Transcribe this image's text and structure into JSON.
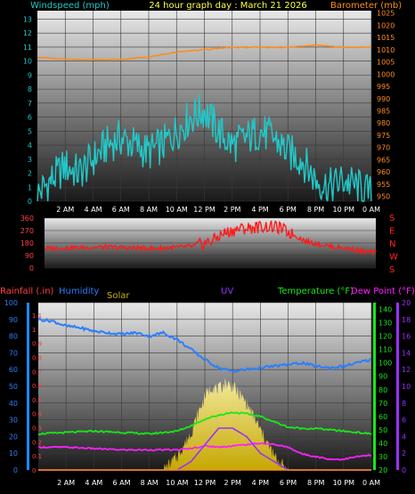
{
  "header": {
    "title": "24 hour graph day : March 21 2026",
    "wind_label": "Windspeed (mph)",
    "baro_label": "Barometer (mb)"
  },
  "legend": {
    "rain": "Rainfall (.in)",
    "humidity": "Humidity",
    "solar": "Solar",
    "uv": "UV",
    "temp": "Temperature (°F)",
    "dew": "Dew Point (°F)"
  },
  "compass": [
    "S",
    "E",
    "N",
    "W",
    "S"
  ],
  "colors": {
    "wind": "#22c8c8",
    "baro": "#ff8c1a",
    "dir": "#ff1a1a",
    "rain_axis": "#1a8cff",
    "humidity": "#2a7fff",
    "solar": "#c8b400",
    "uv": "#9b30ff",
    "temp": "#18e818",
    "dew": "#ff20ff"
  },
  "chart_data": [
    {
      "type": "line",
      "title": "24 hour graph day : March 21 2026",
      "x_ticks": [
        "2 AM",
        "4 AM",
        "6 AM",
        "8 AM",
        "10 AM",
        "12 PM",
        "2 PM",
        "4 PM",
        "6 PM",
        "8 PM",
        "10 PM",
        "0 AM"
      ],
      "wind_ticks": [
        0,
        1,
        2,
        3,
        4,
        5,
        6,
        7,
        8,
        9,
        10,
        11,
        12,
        13
      ],
      "baro_ticks": [
        950,
        955,
        960,
        965,
        970,
        975,
        980,
        985,
        990,
        995,
        1000,
        1005,
        1010,
        1015,
        1020,
        1025
      ],
      "ylim_wind": [
        0,
        13.6
      ],
      "ylim_baro": [
        948,
        1026
      ],
      "series": [
        {
          "name": "Windspeed (mph)",
          "x": [
            0,
            1,
            2,
            3,
            4,
            5,
            6,
            7,
            8,
            9,
            10,
            11,
            12,
            13,
            14,
            15,
            16,
            17,
            18,
            19,
            20,
            21,
            22,
            23,
            24
          ],
          "values": [
            0.5,
            1.5,
            2.5,
            2,
            3,
            4,
            4.5,
            4,
            3.5,
            4,
            5,
            6,
            6.5,
            5,
            4,
            4.5,
            5,
            4.5,
            3.5,
            3,
            1.5,
            1,
            1.5,
            1,
            0.5
          ]
        },
        {
          "name": "Barometer (mb)",
          "x": [
            0,
            2,
            4,
            6,
            8,
            10,
            12,
            14,
            16,
            18,
            20,
            22,
            24
          ],
          "values": [
            1007,
            1006,
            1006,
            1006,
            1007,
            1009,
            1010,
            1011,
            1011,
            1011,
            1012,
            1011,
            1011
          ]
        }
      ]
    },
    {
      "type": "line",
      "dir_ticks": [
        0,
        90,
        180,
        270,
        360
      ],
      "ylim": [
        0,
        360
      ],
      "series": [
        {
          "name": "Wind direction",
          "x": [
            0,
            2,
            4,
            6,
            8,
            10,
            11,
            12,
            13,
            14,
            15,
            16,
            17,
            18,
            19,
            20,
            21,
            22,
            23,
            24
          ],
          "values": [
            140,
            145,
            150,
            145,
            140,
            150,
            160,
            190,
            250,
            280,
            290,
            300,
            290,
            240,
            190,
            170,
            150,
            140,
            120,
            110
          ]
        }
      ]
    },
    {
      "type": "line",
      "rain_ticks": [
        0,
        0.1,
        0.2,
        0.3,
        0.4,
        0.5,
        0.6,
        0.7,
        0.8,
        0.9,
        1,
        1.1
      ],
      "pct_ticks": [
        0,
        10,
        20,
        30,
        40,
        50,
        60,
        70,
        80,
        90,
        100
      ],
      "temp_ticks": [
        20,
        30,
        40,
        50,
        60,
        70,
        80,
        90,
        100,
        110,
        120,
        130,
        140
      ],
      "uv_ticks": [
        0,
        2,
        4,
        6,
        8,
        10,
        12,
        14,
        16,
        18,
        20
      ],
      "ylim_pct": [
        0,
        100
      ],
      "ylim_temp": [
        20,
        145
      ],
      "series": [
        {
          "name": "Humidity",
          "x": [
            0,
            1,
            2,
            3,
            4,
            5,
            6,
            7,
            8,
            9,
            10,
            11,
            12,
            13,
            14,
            15,
            16,
            17,
            18,
            19,
            20,
            21,
            22,
            23,
            24
          ],
          "values": [
            90,
            89,
            86,
            85,
            83,
            82,
            81,
            82,
            80,
            82,
            78,
            72,
            66,
            61,
            59,
            60,
            61,
            62,
            63,
            64,
            62,
            61,
            62,
            64,
            66
          ]
        },
        {
          "name": "Solar",
          "x": [
            9,
            10,
            11,
            12,
            12.5,
            13,
            13.5,
            14,
            15,
            16,
            17,
            18
          ],
          "values": [
            0,
            8,
            22,
            44,
            50,
            48,
            52,
            50,
            40,
            24,
            8,
            0
          ]
        },
        {
          "name": "UV",
          "x": [
            0,
            6,
            8,
            10,
            11,
            12,
            12.5,
            13,
            14,
            15,
            16,
            17,
            17.5,
            18,
            19,
            24
          ],
          "values": [
            0,
            0,
            0,
            0,
            1,
            3,
            4,
            5,
            5,
            4,
            2,
            1,
            0.5,
            0,
            0,
            0
          ]
        },
        {
          "name": "Temperature (°F)",
          "x": [
            0,
            2,
            4,
            6,
            8,
            10,
            11,
            12,
            13,
            14,
            15,
            16,
            17,
            18,
            19,
            20,
            21,
            22,
            23,
            24
          ],
          "values": [
            47,
            48,
            49,
            48,
            47,
            49,
            53,
            58,
            61,
            63,
            62,
            60,
            56,
            52,
            51,
            51,
            50,
            49,
            48,
            47
          ]
        },
        {
          "name": "Dew Point (°F)",
          "x": [
            0,
            2,
            4,
            6,
            8,
            10,
            11,
            12,
            13,
            14,
            15,
            16,
            17,
            18,
            19,
            20,
            21,
            22,
            23,
            24
          ],
          "values": [
            37,
            37,
            36,
            35,
            35,
            35,
            36,
            38,
            37,
            38,
            39,
            40,
            39,
            37,
            32,
            30,
            28,
            28,
            30,
            31
          ]
        },
        {
          "name": "Rainfall (.in)",
          "x": [
            0,
            24
          ],
          "values": [
            0,
            0
          ]
        }
      ]
    }
  ]
}
